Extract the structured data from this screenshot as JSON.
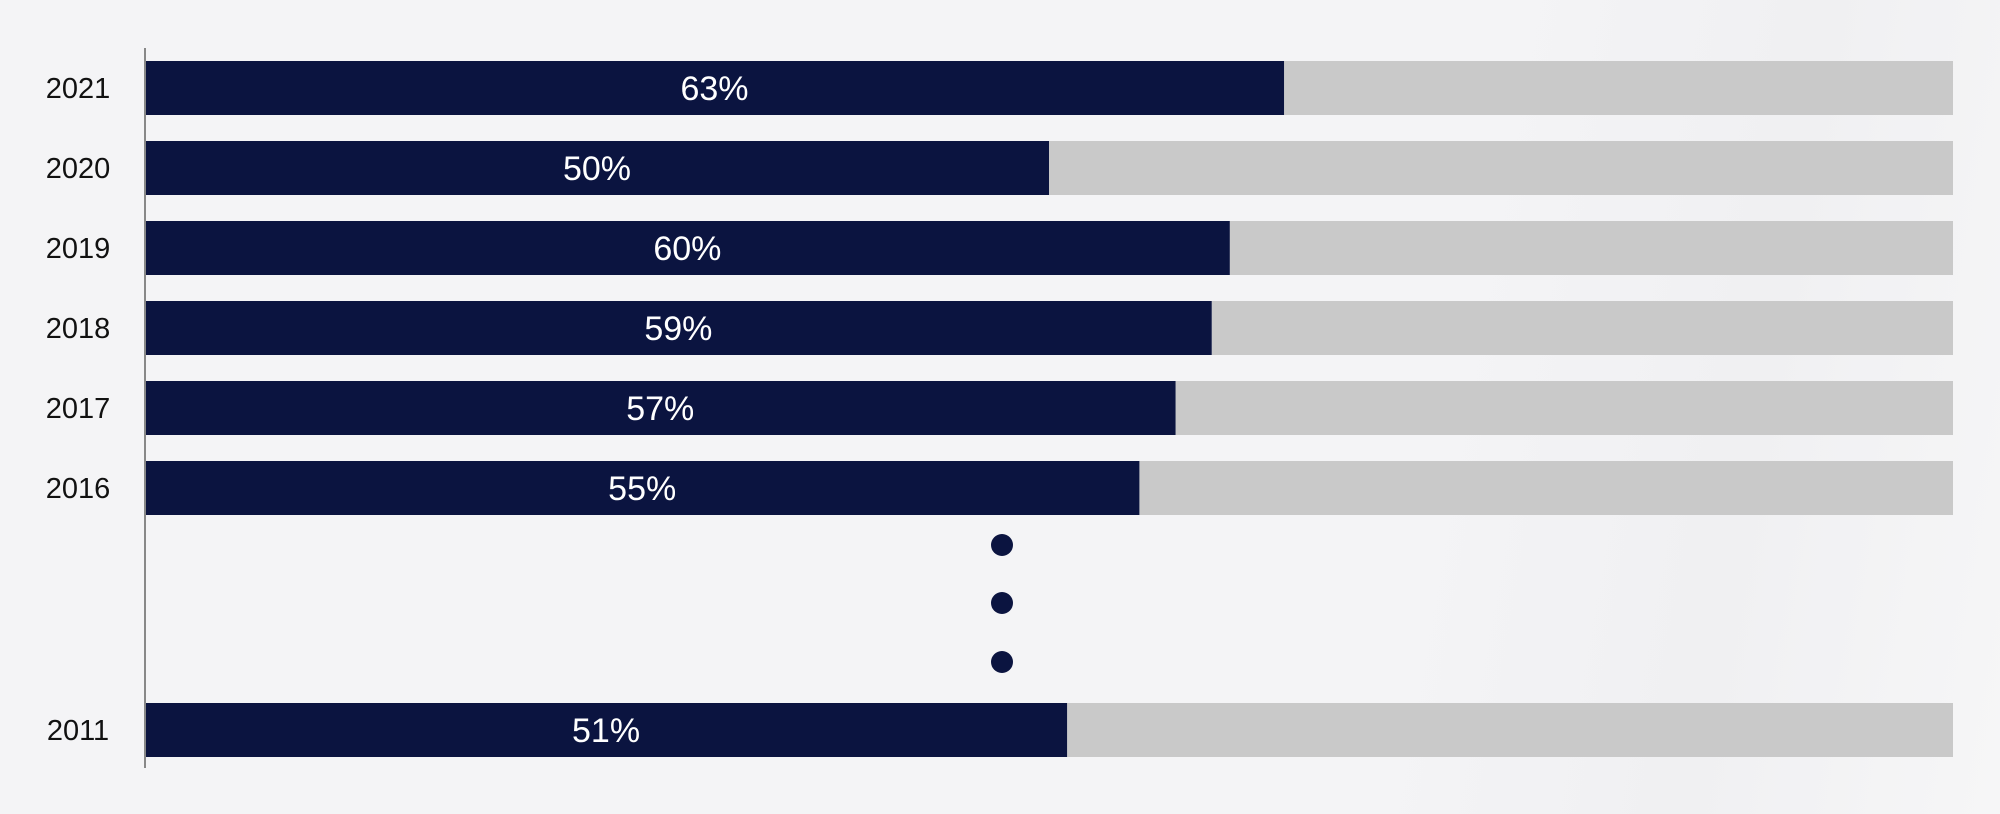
{
  "chart_data": {
    "type": "bar",
    "orientation": "horizontal",
    "stacked": true,
    "categories": [
      "2021",
      "2020",
      "2019",
      "2018",
      "2017",
      "2016",
      "2011"
    ],
    "values": [
      63,
      50,
      60,
      59,
      57,
      55,
      51
    ],
    "data_labels": [
      "63%",
      "50%",
      "60%",
      "59%",
      "57%",
      "55%",
      "51%"
    ],
    "xlim": [
      0,
      100
    ],
    "gap_marker": "three-dots-between-2016-and-2011",
    "colors": {
      "bar": "#0b1440",
      "remainder": "#c9c9c9",
      "label": "#ffffff",
      "category_text": "#111111",
      "axis_line": "#888888",
      "dots": "#0b1440"
    },
    "grid": false,
    "legend": "none"
  }
}
